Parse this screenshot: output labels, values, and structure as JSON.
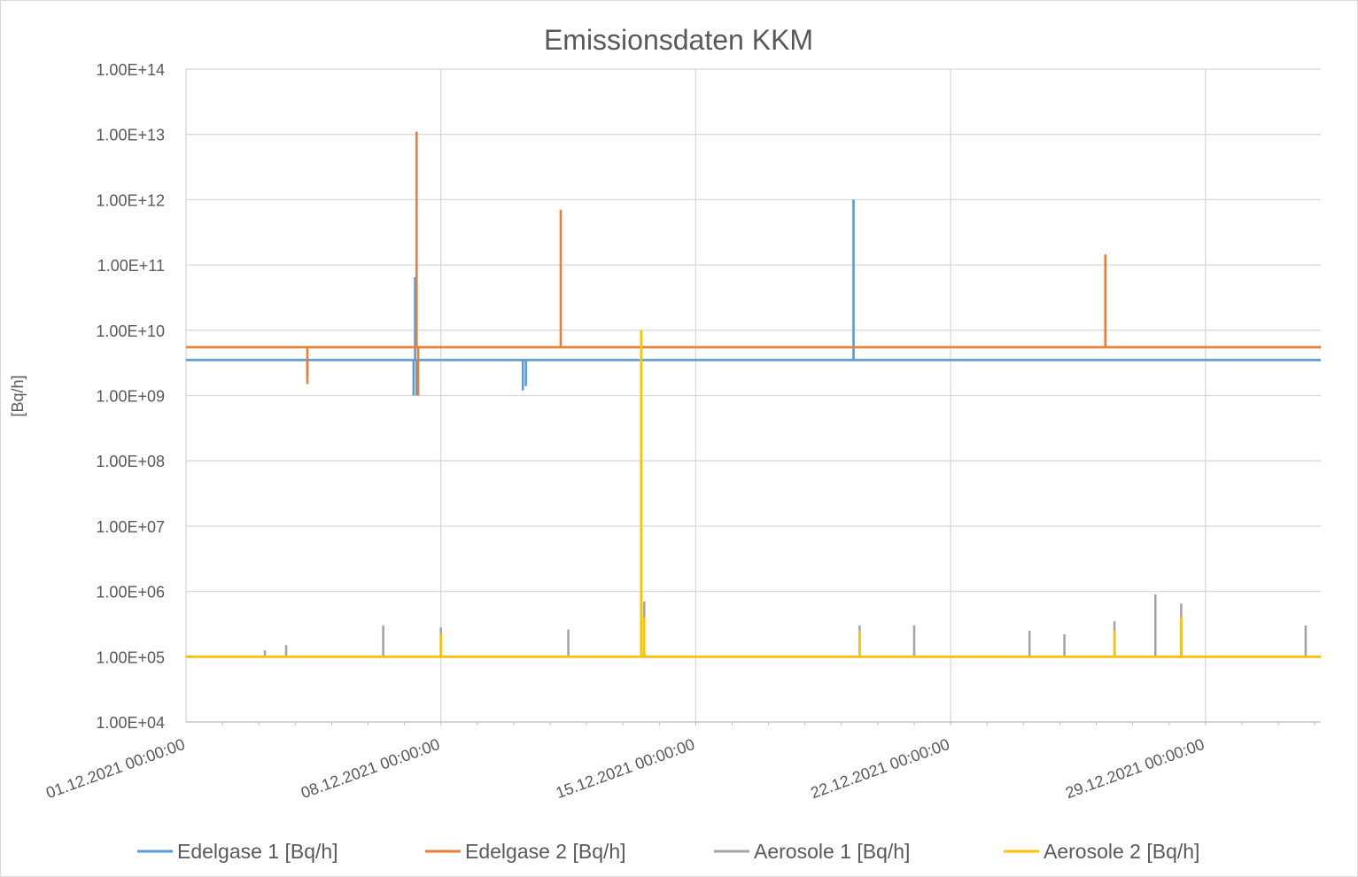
{
  "chart_data": {
    "type": "line",
    "title": "Emissionsdaten KKM",
    "xlabel": "",
    "ylabel": "[Bq/h]",
    "y_scale": "log",
    "ylim": [
      10000.0,
      100000000000000.0
    ],
    "x_range": [
      "01.12.2021 00:00:00",
      "01.01.2022 04:00:00"
    ],
    "y_ticks": [
      "1.00E+04",
      "1.00E+05",
      "1.00E+06",
      "1.00E+07",
      "1.00E+08",
      "1.00E+09",
      "1.00E+10",
      "1.00E+11",
      "1.00E+12",
      "1.00E+13",
      "1.00E+14"
    ],
    "x_ticks": [
      "01.12.2021 00:00:00",
      "08.12.2021 00:00:00",
      "15.12.2021 00:00:00",
      "22.12.2021 00:00:00",
      "29.12.2021 00:00:00"
    ],
    "grid": true,
    "legend_position": "bottom",
    "series": [
      {
        "name": "Edelgase 1 [Bq/h]",
        "color": "#5B9BD5",
        "baseline": 3500000000.0,
        "points": [
          {
            "x": "01.12.2021 00:00:00",
            "y": 3500000000.0
          },
          {
            "x": "04.12.2021 08:00:00",
            "y": 2000000000.0
          },
          {
            "x": "07.12.2021 06:00:00",
            "y": 1000000000.0
          },
          {
            "x": "07.12.2021 07:00:00",
            "y": 65000000000.0
          },
          {
            "x": "07.12.2021 08:00:00",
            "y": 1000000000.0
          },
          {
            "x": "10.12.2021 06:00:00",
            "y": 1200000000.0
          },
          {
            "x": "10.12.2021 08:00:00",
            "y": 1400000000.0
          },
          {
            "x": "19.12.2021 08:00:00",
            "y": 1000000000000.0
          },
          {
            "x": "01.01.2022 04:00:00",
            "y": 3500000000.0
          }
        ]
      },
      {
        "name": "Edelgase 2 [Bq/h]",
        "color": "#ED7D31",
        "baseline": 5500000000.0,
        "points": [
          {
            "x": "01.12.2021 00:00:00",
            "y": 5500000000.0
          },
          {
            "x": "04.12.2021 08:00:00",
            "y": 1500000000.0
          },
          {
            "x": "07.12.2021 08:00:00",
            "y": 11000000000000.0
          },
          {
            "x": "07.12.2021 09:00:00",
            "y": 1000000000.0
          },
          {
            "x": "11.12.2021 07:00:00",
            "y": 700000000000.0
          },
          {
            "x": "26.12.2021 06:00:00",
            "y": 145000000000.0
          },
          {
            "x": "01.01.2022 04:00:00",
            "y": 5500000000.0
          }
        ]
      },
      {
        "name": "Aerosole 1 [Bq/h]",
        "color": "#A5A5A5",
        "baseline": 100000.0,
        "points": [
          {
            "x": "01.12.2021 00:00:00",
            "y": 100000.0
          },
          {
            "x": "03.12.2021 04:00:00",
            "y": 125000.0
          },
          {
            "x": "03.12.2021 18:00:00",
            "y": 150000.0
          },
          {
            "x": "06.12.2021 10:00:00",
            "y": 300000.0
          },
          {
            "x": "08.12.2021 00:00:00",
            "y": 280000.0
          },
          {
            "x": "11.12.2021 12:00:00",
            "y": 260000.0
          },
          {
            "x": "13.12.2021 12:00:00",
            "y": 100000000.0
          },
          {
            "x": "13.12.2021 14:00:00",
            "y": 700000.0
          },
          {
            "x": "19.12.2021 12:00:00",
            "y": 300000.0
          },
          {
            "x": "21.12.2021 00:00:00",
            "y": 300000.0
          },
          {
            "x": "24.12.2021 04:00:00",
            "y": 250000.0
          },
          {
            "x": "25.12.2021 03:00:00",
            "y": 220000.0
          },
          {
            "x": "26.12.2021 12:00:00",
            "y": 350000.0
          },
          {
            "x": "27.12.2021 15:00:00",
            "y": 900000.0
          },
          {
            "x": "28.12.2021 08:00:00",
            "y": 650000.0
          },
          {
            "x": "31.12.2021 18:00:00",
            "y": 300000.0
          },
          {
            "x": "01.01.2022 04:00:00",
            "y": 100000.0
          }
        ]
      },
      {
        "name": "Aerosole 2 [Bq/h]",
        "color": "#FFC000",
        "baseline": 100000.0,
        "points": [
          {
            "x": "01.12.2021 00:00:00",
            "y": 100000.0
          },
          {
            "x": "08.12.2021 00:00:00",
            "y": 220000.0
          },
          {
            "x": "13.12.2021 12:00:00",
            "y": 10000000000.0
          },
          {
            "x": "13.12.2021 14:00:00",
            "y": 400000.0
          },
          {
            "x": "19.12.2021 12:00:00",
            "y": 250000.0
          },
          {
            "x": "26.12.2021 12:00:00",
            "y": 250000.0
          },
          {
            "x": "28.12.2021 08:00:00",
            "y": 400000.0
          },
          {
            "x": "01.01.2022 04:00:00",
            "y": 100000.0
          }
        ]
      }
    ]
  }
}
